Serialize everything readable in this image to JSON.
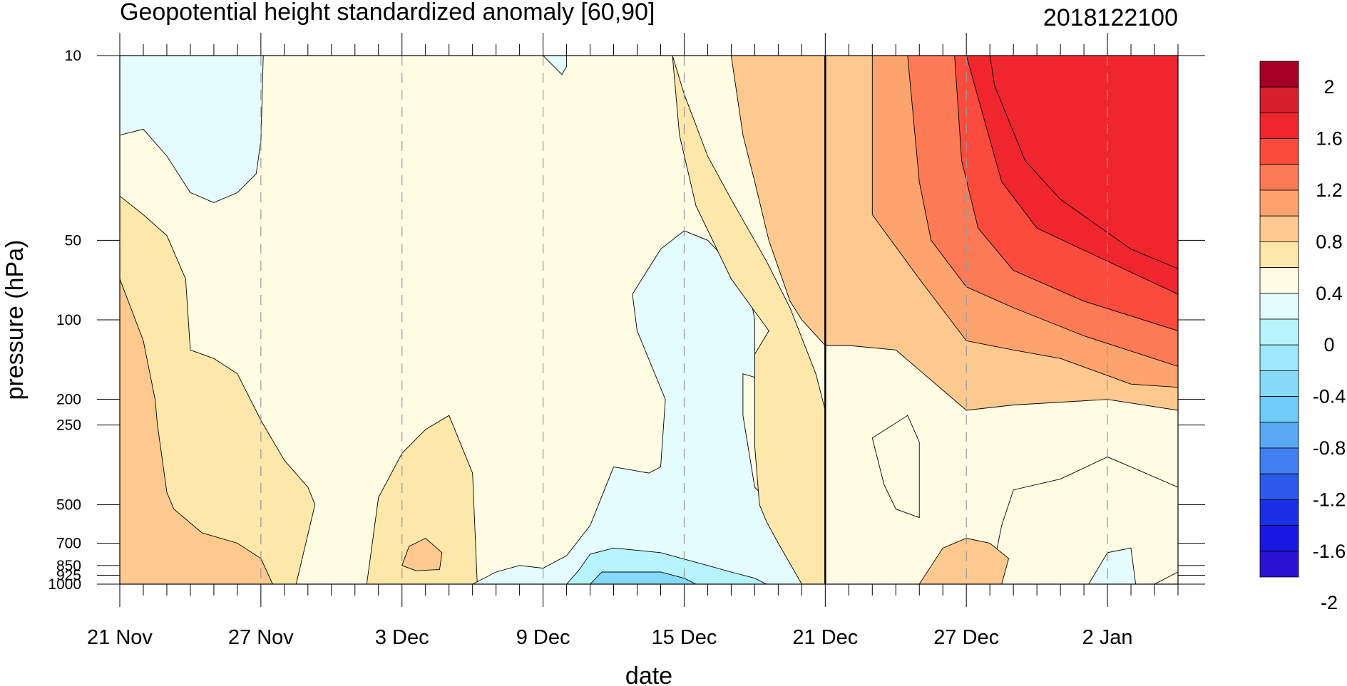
{
  "chart_data": {
    "type": "heatmap",
    "title": "Geopotential height standardized anomaly [60,90]",
    "date_label": "2018122100",
    "xlabel": "date",
    "ylabel": "pressure (hPa)",
    "x_ticks": [
      {
        "label": "21 Nov",
        "day": 0
      },
      {
        "label": "27 Nov",
        "day": 6
      },
      {
        "label": "3 Dec",
        "day": 12
      },
      {
        "label": "9 Dec",
        "day": 18
      },
      {
        "label": "15 Dec",
        "day": 24
      },
      {
        "label": "21 Dec",
        "day": 30
      },
      {
        "label": "27 Dec",
        "day": 36
      },
      {
        "label": "2 Jan",
        "day": 42
      }
    ],
    "xlim_days": [
      0,
      45
    ],
    "y_ticks": [
      10,
      50,
      100,
      200,
      250,
      500,
      700,
      850,
      925,
      1000
    ],
    "ylim": [
      10,
      1000
    ],
    "yscale": "log",
    "forecast_start_day": 30,
    "grid": "dashed vertical lines at date ticks",
    "colorbar": {
      "ticks": [
        "2",
        "1.6",
        "1.2",
        "0.8",
        "0.4",
        "0",
        "-0.4",
        "-0.8",
        "-1.2",
        "-1.6",
        "-2"
      ],
      "colors": [
        "#A50026",
        "#D7202E",
        "#F0262F",
        "#FA4B3C",
        "#FC7A56",
        "#FCA36E",
        "#FDC98E",
        "#FEE7AA",
        "#FFFCE4",
        "#E4FCFE",
        "#B7F5FE",
        "#9DE8FB",
        "#86DAF8",
        "#6ECCF6",
        "#58A8F3",
        "#3F7FEF",
        "#2A59EC",
        "#1A30E6",
        "#1A17E2",
        "#2A12D0"
      ],
      "placement": "right"
    },
    "levels": [
      {
        "value": -0.4,
        "color": "#B7F5FE"
      },
      {
        "value": -0.6,
        "color": "#86DAF8"
      },
      {
        "value": 0,
        "color": "#FFFCE4"
      },
      {
        "value": 0.2,
        "color": "#FEE7AA"
      },
      {
        "value": 0.4,
        "color": "#FDD79A"
      },
      {
        "value": 0.6,
        "color": "#FDC98E"
      },
      {
        "value": 0.8,
        "color": "#FCA36E"
      },
      {
        "value": 1.0,
        "color": "#FC7A56"
      },
      {
        "value": 1.2,
        "color": "#FA4B3C"
      },
      {
        "value": 1.6,
        "color": "#F0262F"
      }
    ],
    "regions": [
      {
        "level": 0,
        "color": "#FFFCE4",
        "points": [
          [
            0,
            10
          ],
          [
            45,
            10
          ],
          [
            45,
            1000
          ],
          [
            0,
            1000
          ]
        ]
      },
      {
        "level": -0.2,
        "color": "#E4FCFE",
        "points": [
          [
            0,
            10
          ],
          [
            6.1,
            10
          ],
          [
            6,
            21
          ],
          [
            5.8,
            28
          ],
          [
            5,
            33
          ],
          [
            4,
            36
          ],
          [
            3,
            33
          ],
          [
            2,
            24
          ],
          [
            1,
            19
          ],
          [
            0,
            20
          ]
        ]
      },
      {
        "level": -0.2,
        "color": "#E4FCFE",
        "points": [
          [
            18,
            10
          ],
          [
            19,
            10
          ],
          [
            19,
            11
          ],
          [
            18.8,
            11.8
          ]
        ]
      },
      {
        "level": 0.2,
        "color": "#FEE7AA",
        "points": [
          [
            0,
            34
          ],
          [
            1,
            40
          ],
          [
            2,
            48
          ],
          [
            2.8,
            70
          ],
          [
            3,
            130
          ],
          [
            4,
            140
          ],
          [
            5,
            160
          ],
          [
            6,
            240
          ],
          [
            7,
            340
          ],
          [
            8,
            430
          ],
          [
            8.3,
            500
          ],
          [
            7.5,
            1000
          ],
          [
            0,
            1000
          ]
        ]
      },
      {
        "level": 0.4,
        "color": "#FDC98E",
        "points": [
          [
            0,
            70
          ],
          [
            1,
            120
          ],
          [
            1.5,
            200
          ],
          [
            1.6,
            250
          ],
          [
            2,
            450
          ],
          [
            2.3,
            520
          ],
          [
            3.5,
            640
          ],
          [
            5,
            700
          ],
          [
            6,
            800
          ],
          [
            6.5,
            1000
          ],
          [
            0,
            1000
          ]
        ]
      },
      {
        "level": 0.2,
        "color": "#FEE7AA",
        "points": [
          [
            10.5,
            1000
          ],
          [
            11,
            470
          ],
          [
            12,
            320
          ],
          [
            13,
            260
          ],
          [
            14,
            230
          ],
          [
            15,
            380
          ],
          [
            15.2,
            1000
          ]
        ]
      },
      {
        "level": 0.4,
        "color": "#FDC98E",
        "points": [
          [
            12,
            850
          ],
          [
            12.3,
            720
          ],
          [
            13,
            670
          ],
          [
            13.7,
            760
          ],
          [
            13.6,
            880
          ],
          [
            12.6,
            890
          ]
        ]
      },
      {
        "level": -0.2,
        "color": "#E4FCFE",
        "points": [
          [
            15,
            1000
          ],
          [
            16,
            900
          ],
          [
            17,
            850
          ],
          [
            18,
            870
          ],
          [
            19,
            780
          ],
          [
            20,
            600
          ],
          [
            21,
            360
          ],
          [
            22.5,
            380
          ],
          [
            23,
            360
          ],
          [
            23.2,
            200
          ],
          [
            22,
            110
          ],
          [
            21.8,
            80
          ],
          [
            23,
            54
          ],
          [
            24,
            46
          ],
          [
            25,
            50
          ],
          [
            26,
            62
          ],
          [
            26.8,
            80
          ],
          [
            27,
            100
          ],
          [
            27,
            165
          ],
          [
            26.5,
            160
          ],
          [
            26.5,
            230
          ],
          [
            27,
            430
          ],
          [
            28,
            530
          ],
          [
            28.5,
            660
          ],
          [
            29,
            850
          ],
          [
            29.5,
            1000
          ]
        ]
      },
      {
        "level": -0.4,
        "color": "#B7F5FE",
        "points": [
          [
            19,
            1000
          ],
          [
            19.5,
            890
          ],
          [
            20,
            770
          ],
          [
            21,
            730
          ],
          [
            23,
            760
          ],
          [
            25,
            850
          ],
          [
            26,
            900
          ],
          [
            27,
            950
          ],
          [
            27.5,
            1000
          ]
        ]
      },
      {
        "level": -0.6,
        "color": "#86DAF8",
        "points": [
          [
            20,
            1000
          ],
          [
            20.5,
            900
          ],
          [
            23,
            900
          ],
          [
            24,
            950
          ],
          [
            24.5,
            1000
          ]
        ]
      },
      {
        "level": 0.2,
        "color": "#FEE7AA",
        "points": [
          [
            23.5,
            10
          ],
          [
            24,
            14
          ],
          [
            25,
            24
          ],
          [
            26,
            35
          ],
          [
            27.5,
            60
          ],
          [
            28.5,
            90
          ],
          [
            29.6,
            160
          ],
          [
            30,
            220
          ],
          [
            30,
            1000
          ],
          [
            29,
            1000
          ],
          [
            28,
            700
          ],
          [
            27.5,
            580
          ],
          [
            27.2,
            500
          ],
          [
            27,
            300
          ],
          [
            27,
            135
          ],
          [
            27.6,
            110
          ],
          [
            26,
            70
          ],
          [
            24.5,
            37
          ],
          [
            23.8,
            20
          ]
        ]
      },
      {
        "level": 0.4,
        "color": "#FDC98E",
        "points": [
          [
            26,
            10
          ],
          [
            30,
            10
          ],
          [
            30,
            125
          ],
          [
            29,
            100
          ],
          [
            28.5,
            85
          ],
          [
            27.6,
            50
          ],
          [
            27,
            30
          ],
          [
            26.5,
            20
          ]
        ]
      },
      {
        "level": 0.4,
        "color": "#FDC98E",
        "points": [
          [
            30,
            10
          ],
          [
            45,
            10
          ],
          [
            45,
            220
          ],
          [
            42,
            200
          ],
          [
            38,
            210
          ],
          [
            36,
            220
          ],
          [
            33,
            130
          ],
          [
            31,
            125
          ],
          [
            30,
            125
          ]
        ]
      },
      {
        "level": 0.6,
        "color": "#FCA36E",
        "points": [
          [
            37,
            10
          ],
          [
            45,
            10
          ],
          [
            45,
            180
          ],
          [
            43,
            175
          ],
          [
            40,
            140
          ],
          [
            38,
            130
          ],
          [
            36,
            120
          ],
          [
            34,
            70
          ],
          [
            32,
            40
          ],
          [
            32,
            10
          ]
        ]
      },
      {
        "level": 0.8,
        "color": "#FC7A56",
        "points": [
          [
            33.5,
            10
          ],
          [
            45,
            10
          ],
          [
            45,
            150
          ],
          [
            41,
            115
          ],
          [
            38,
            90
          ],
          [
            36,
            75
          ],
          [
            34.5,
            50
          ],
          [
            34,
            30
          ]
        ]
      },
      {
        "level": 1.0,
        "color": "#FA4B3C",
        "points": [
          [
            35.5,
            10
          ],
          [
            45,
            10
          ],
          [
            45,
            110
          ],
          [
            41,
            85
          ],
          [
            38,
            65
          ],
          [
            36.5,
            45
          ],
          [
            35.8,
            25
          ]
        ]
      },
      {
        "level": 1.2,
        "color": "#F0262F",
        "points": [
          [
            36,
            10
          ],
          [
            45,
            10
          ],
          [
            45,
            80
          ],
          [
            42,
            60
          ],
          [
            39,
            45
          ],
          [
            37.5,
            30
          ],
          [
            36.8,
            18
          ]
        ]
      },
      {
        "level": 1.6,
        "color": "#F0262F",
        "points": [
          [
            37,
            10
          ],
          [
            45,
            10
          ],
          [
            45,
            64
          ],
          [
            43,
            54
          ],
          [
            40,
            35
          ],
          [
            38.5,
            25
          ],
          [
            37.2,
            13
          ]
        ]
      },
      {
        "level": 0,
        "color": "#FFFCE4",
        "points": [
          [
            32,
            280
          ],
          [
            33.5,
            230
          ],
          [
            34,
            290
          ],
          [
            34,
            560
          ],
          [
            33,
            520
          ],
          [
            32.5,
            420
          ]
        ]
      },
      {
        "level": 0,
        "color": "#FFFCE4",
        "points": [
          [
            37,
            1000
          ],
          [
            37.5,
            600
          ],
          [
            38,
            440
          ],
          [
            40,
            400
          ],
          [
            42,
            330
          ],
          [
            43,
            360
          ],
          [
            45,
            430
          ],
          [
            45,
            900
          ],
          [
            44,
            1000
          ]
        ]
      },
      {
        "level": -0.2,
        "color": "#E4FCFE",
        "points": [
          [
            41.2,
            1000
          ],
          [
            42,
            760
          ],
          [
            43,
            730
          ],
          [
            43.2,
            1000
          ]
        ]
      },
      {
        "level": 0.4,
        "color": "#FDC98E",
        "points": [
          [
            34,
            1000
          ],
          [
            35,
            730
          ],
          [
            36,
            670
          ],
          [
            37,
            700
          ],
          [
            37.8,
            800
          ],
          [
            37.5,
            1000
          ]
        ]
      }
    ]
  }
}
